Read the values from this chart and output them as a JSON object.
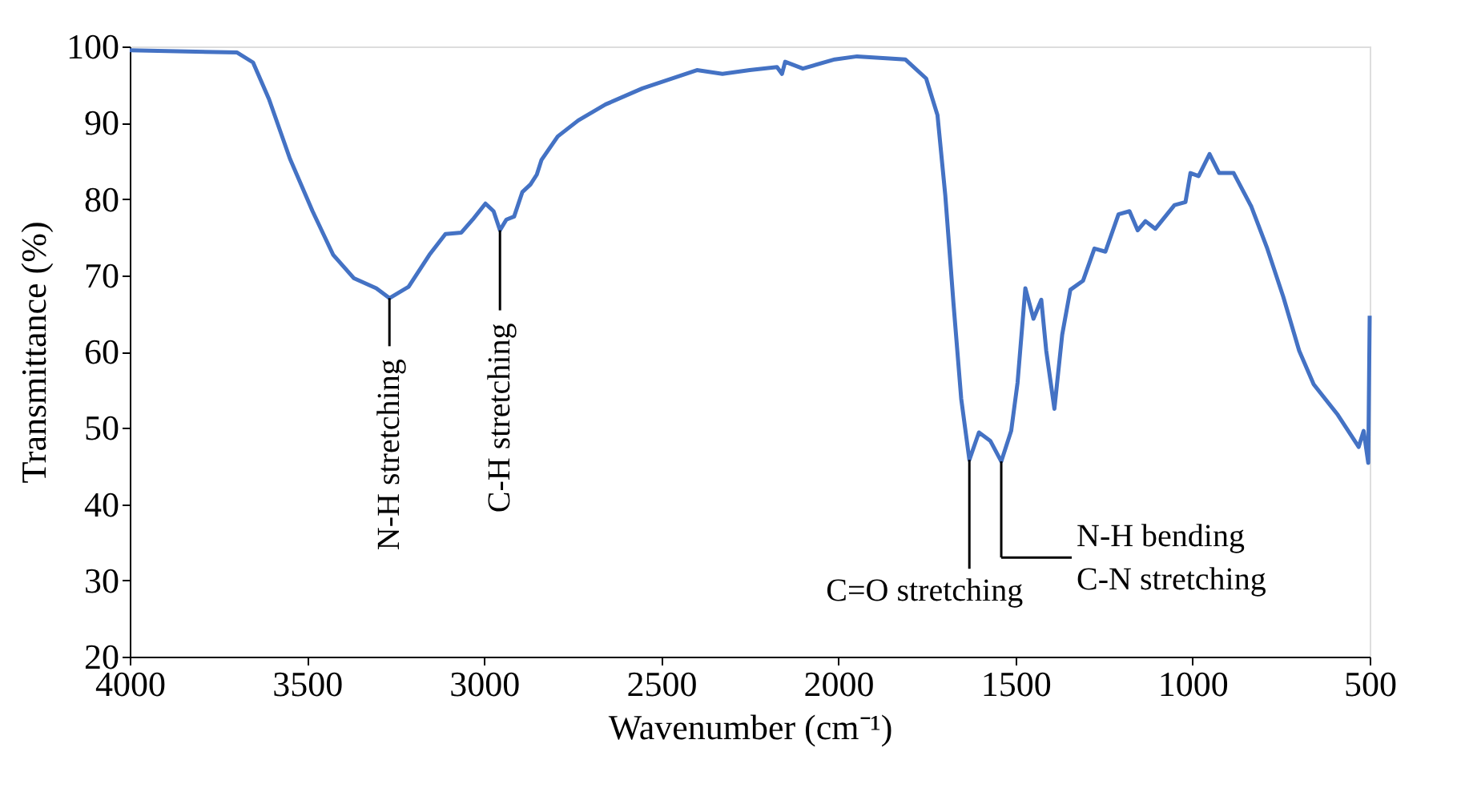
{
  "chart_data": {
    "type": "line",
    "xlabel": "Wavenumber (cm⁻¹)",
    "ylabel": "Transmittance (%)",
    "xlim": [
      4000,
      500
    ],
    "xticks": [
      4000,
      3500,
      3000,
      2500,
      2000,
      1500,
      1000,
      500
    ],
    "ylim": [
      20,
      100
    ],
    "yticks": [
      20,
      30,
      40,
      50,
      60,
      70,
      80,
      90,
      100
    ],
    "grid": false,
    "marker": "none",
    "line_style": "solid",
    "series": [
      {
        "color": "#4472c4",
        "x": [
          4000,
          3697,
          3652,
          3607,
          3548,
          3484,
          3426,
          3367,
          3304,
          3267,
          3213,
          3154,
          3109,
          3064,
          3032,
          2996,
          2973,
          2955,
          2937,
          2915,
          2892,
          2869,
          2851,
          2838,
          2792,
          2734,
          2657,
          2553,
          2399,
          2327,
          2250,
          2173,
          2159,
          2150,
          2100,
          2010,
          1947,
          1811,
          1752,
          1720,
          1698,
          1675,
          1653,
          1630,
          1603,
          1571,
          1540,
          1512,
          1494,
          1472,
          1449,
          1427,
          1413,
          1390,
          1368,
          1345,
          1309,
          1277,
          1246,
          1209,
          1178,
          1155,
          1133,
          1105,
          1051,
          1020,
          1006,
          983,
          952,
          925,
          884,
          834,
          789,
          744,
          699,
          658,
          590,
          531,
          517,
          504,
          500
        ],
        "values": [
          99.5,
          99.2,
          97.9,
          93.1,
          85.3,
          78.4,
          72.7,
          69.6,
          68.3,
          67.0,
          68.5,
          72.7,
          75.4,
          75.6,
          77.3,
          79.4,
          78.4,
          75.9,
          77.3,
          77.7,
          80.9,
          81.9,
          83.2,
          85.1,
          88.2,
          90.3,
          92.4,
          94.5,
          96.9,
          96.4,
          96.9,
          97.3,
          96.4,
          98.0,
          97.1,
          98.3,
          98.7,
          98.3,
          95.8,
          91.0,
          80.5,
          66.4,
          53.8,
          45.8,
          49.4,
          48.3,
          45.6,
          49.6,
          55.9,
          68.3,
          64.3,
          66.8,
          60.1,
          52.5,
          62.2,
          68.1,
          69.3,
          73.5,
          73.1,
          78.0,
          78.4,
          75.9,
          77.1,
          76.1,
          79.2,
          79.6,
          83.4,
          83.0,
          85.9,
          83.4,
          83.4,
          79.0,
          73.5,
          67.2,
          60.1,
          55.7,
          51.7,
          47.5,
          49.6,
          45.4,
          64.7
        ]
      }
    ],
    "annotations": [
      {
        "text": "N-H stretching",
        "x": 3267,
        "y": 67.0
      },
      {
        "text": "C-H stretching",
        "x": 2955,
        "y": 75.9
      },
      {
        "text": "C=O stretching",
        "x": 1630,
        "y": 45.8
      },
      {
        "text": "N-H bending",
        "x": 1540,
        "y": 45.6
      },
      "C-N stretching"
    ]
  }
}
